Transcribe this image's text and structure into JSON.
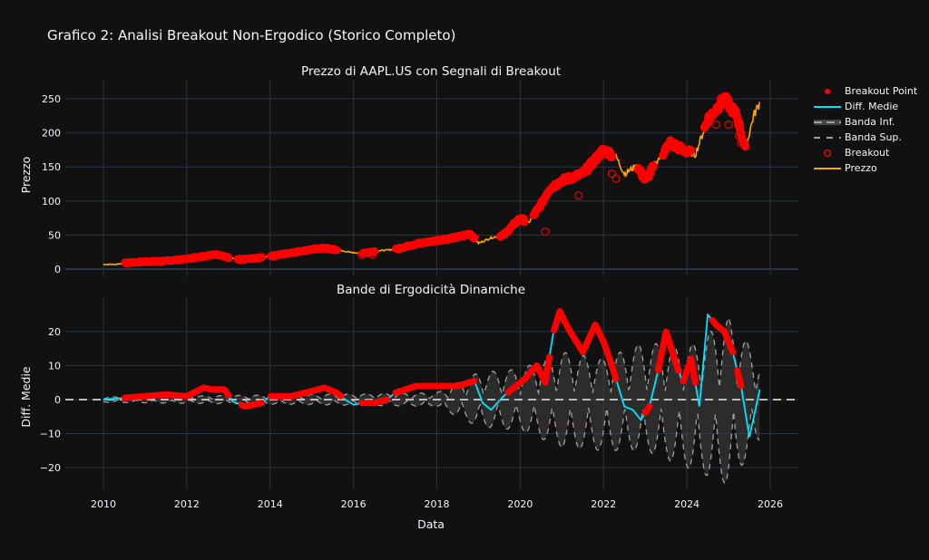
{
  "title": "Grafico 2: Analisi Breakout Non-Ergodico (Storico Completo)",
  "colors": {
    "background": "#111111",
    "grid": "#283442",
    "price": "#FFA500",
    "breakout": "#FF0000",
    "diff": "#00E5FF",
    "band": "#A0A0A0",
    "band_fill": "rgba(68,68,68,0.55)",
    "zero_line": "#BBBBBB"
  },
  "legend": {
    "items": [
      {
        "label": "Breakout Point",
        "symbol": "dot",
        "color": "#FF0000"
      },
      {
        "label": "Diff. Medie",
        "symbol": "line",
        "color": "#00E5FF"
      },
      {
        "label": "Banda Inf.",
        "symbol": "dash-fill",
        "color": "#A0A0A0"
      },
      {
        "label": "Banda Sup.",
        "symbol": "dash",
        "color": "#A0A0A0"
      },
      {
        "label": "Breakout",
        "symbol": "circle-open",
        "color": "#FF0000"
      },
      {
        "label": "Prezzo",
        "symbol": "line",
        "color": "#FFA500"
      }
    ]
  },
  "chart_data": [
    {
      "type": "line",
      "title": "Prezzo di AAPL.US con Segnali di Breakout",
      "xlabel": "",
      "ylabel": "Prezzo",
      "xlim": [
        2009.1,
        2026.4
      ],
      "ylim": [
        -8,
        270
      ],
      "xticks": [
        2010,
        2012,
        2014,
        2016,
        2018,
        2020,
        2022,
        2024,
        2026
      ],
      "yticks": [
        0,
        50,
        100,
        150,
        200,
        250
      ],
      "grid": true,
      "series": [
        {
          "name": "Prezzo",
          "x": [
            2010.0,
            2010.3,
            2010.5,
            2011.0,
            2011.5,
            2012.0,
            2012.5,
            2012.7,
            2013.0,
            2013.3,
            2013.7,
            2014.0,
            2014.5,
            2015.0,
            2015.3,
            2015.6,
            2016.0,
            2016.3,
            2016.6,
            2017.0,
            2017.5,
            2018.0,
            2018.5,
            2018.8,
            2019.0,
            2019.3,
            2019.6,
            2020.0,
            2020.2,
            2020.5,
            2020.7,
            2021.0,
            2021.5,
            2022.0,
            2022.3,
            2022.5,
            2022.8,
            2023.0,
            2023.3,
            2023.6,
            2023.9,
            2024.2,
            2024.5,
            2024.9,
            2025.2,
            2025.4,
            2025.6,
            2025.75
          ],
          "y": [
            7,
            7,
            9,
            11,
            12,
            15,
            20,
            22,
            17,
            14,
            16,
            19,
            24,
            29,
            31,
            28,
            24,
            24,
            27,
            29,
            37,
            42,
            47,
            52,
            38,
            46,
            50,
            75,
            68,
            95,
            118,
            130,
            140,
            175,
            165,
            140,
            152,
            130,
            160,
            185,
            175,
            168,
            220,
            250,
            225,
            175,
            225,
            245
          ]
        },
        {
          "name": "Breakout Point",
          "segments": [
            [
              2010.5,
              2013.0
            ],
            [
              2013.2,
              2013.8
            ],
            [
              2014.0,
              2015.6
            ],
            [
              2016.2,
              2016.5
            ],
            [
              2017.0,
              2018.9
            ],
            [
              2019.5,
              2020.1
            ],
            [
              2020.3,
              2022.2
            ],
            [
              2022.8,
              2023.2
            ],
            [
              2023.4,
              2024.1
            ],
            [
              2024.4,
              2025.4
            ]
          ]
        },
        {
          "name": "Breakout",
          "x": [
            2016.2,
            2016.45,
            2020.6,
            2021.4,
            2022.2,
            2022.3,
            2024.7,
            2025.0,
            2025.25,
            2025.3
          ],
          "y": [
            21,
            21,
            55,
            108,
            140,
            133,
            212,
            212,
            195,
            185
          ]
        }
      ]
    },
    {
      "type": "line",
      "title": "Bande di Ergodicità Dinamiche",
      "xlabel": "Data",
      "ylabel": "Diff. Medie",
      "xlim": [
        2009.1,
        2026.4
      ],
      "ylim": [
        -26,
        29
      ],
      "xticks": [
        2010,
        2012,
        2014,
        2016,
        2018,
        2020,
        2022,
        2024,
        2026
      ],
      "yticks": [
        -20,
        -10,
        0,
        10,
        20
      ],
      "grid": true,
      "series": [
        {
          "name": "Diff. Medie",
          "x": [
            2010.0,
            2010.5,
            2011.0,
            2011.5,
            2012.0,
            2012.4,
            2012.6,
            2012.9,
            2013.1,
            2013.4,
            2013.8,
            2014.0,
            2014.5,
            2015.0,
            2015.3,
            2015.6,
            2015.8,
            2016.0,
            2016.2,
            2016.5,
            2016.8,
            2017.0,
            2017.5,
            2018.0,
            2018.5,
            2018.9,
            2019.1,
            2019.3,
            2019.6,
            2019.9,
            2020.1,
            2020.4,
            2020.6,
            2020.8,
            2020.95,
            2021.15,
            2021.5,
            2021.8,
            2022.0,
            2022.2,
            2022.5,
            2022.7,
            2022.9,
            2023.1,
            2023.3,
            2023.5,
            2023.7,
            2023.9,
            2024.1,
            2024.3,
            2024.5,
            2024.7,
            2024.9,
            2025.1,
            2025.3,
            2025.5,
            2025.75
          ],
          "y": [
            0,
            0.5,
            1,
            1.5,
            1,
            3.5,
            3,
            3,
            -0.5,
            -2,
            -1,
            1,
            1,
            2.5,
            3.5,
            2,
            0,
            -1.5,
            -1,
            -1,
            0,
            2,
            4,
            4,
            4,
            5.5,
            -1,
            -3,
            1,
            4,
            6,
            10,
            5,
            20,
            26,
            21,
            14,
            22,
            17,
            10,
            -2,
            -3,
            -6,
            -2,
            8,
            20,
            12,
            5,
            12,
            -2,
            25,
            22,
            20,
            14,
            4,
            -11,
            3
          ]
        },
        {
          "name": "Banda Sup.",
          "description": "oscillating upper band, amplitude grows from ~1 (2010) to ~24 (2025)",
          "amplitude_envelope": {
            "x": [
              2010,
              2015,
              2018,
              2019,
              2020,
              2021,
              2022,
              2023,
              2024,
              2025,
              2025.75
            ],
            "y": [
              0.8,
              1.5,
              2,
              8,
              9,
              14,
              12,
              17,
              15,
              24,
              12
            ]
          }
        },
        {
          "name": "Banda Inf.",
          "description": "mirror of upper band, fill between bands",
          "amplitude_envelope": {
            "x": [
              2010,
              2015,
              2018,
              2019,
              2020,
              2021,
              2022,
              2023,
              2024,
              2025,
              2025.75
            ],
            "y": [
              -0.8,
              -1.5,
              -2,
              -8,
              -9,
              -14,
              -15,
              -15,
              -20,
              -25,
              -12
            ]
          }
        },
        {
          "name": "Breakout Point",
          "segments": [
            [
              2010.5,
              2013.0
            ],
            [
              2013.3,
              2013.8
            ],
            [
              2014.0,
              2015.7
            ],
            [
              2016.2,
              2016.8
            ],
            [
              2017.0,
              2018.9
            ],
            [
              2019.7,
              2020.7
            ],
            [
              2020.8,
              2022.3
            ],
            [
              2023.0,
              2023.1
            ],
            [
              2023.3,
              2023.8
            ],
            [
              2023.9,
              2024.2
            ],
            [
              2024.6,
              2025.1
            ],
            [
              2025.2,
              2025.3
            ]
          ]
        }
      ]
    }
  ]
}
